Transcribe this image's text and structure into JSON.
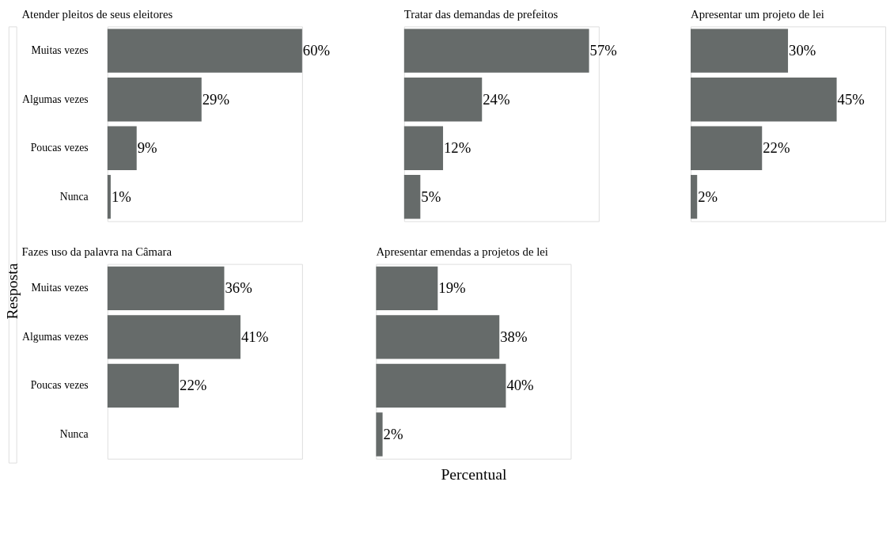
{
  "chart_data": [
    {
      "type": "bar",
      "orientation": "horizontal",
      "title": "Atender pleitos de seus eleitores",
      "ylabel": "Resposta",
      "categories": [
        "Muitas vezes",
        "Algumas vezes",
        "Poucas vezes",
        "Nunca"
      ],
      "values": [
        60,
        29,
        9,
        1
      ],
      "value_labels": [
        "60%",
        "29%",
        "9%",
        "1%"
      ],
      "color": "#666b6a",
      "tick_labels": "y",
      "grid": false
    },
    {
      "type": "bar",
      "orientation": "horizontal",
      "title": "Tratar das demandas de prefeitos",
      "categories": [
        null,
        null,
        null,
        null
      ],
      "values": [
        57,
        24,
        12,
        5
      ],
      "value_labels": [
        "57%",
        "24%",
        "12%",
        "5%"
      ],
      "color": "#666b6a",
      "tick_labels": false,
      "grid": false
    },
    {
      "type": "bar",
      "orientation": "horizontal",
      "title": "Apresentar um projeto de lei",
      "categories": [
        null,
        null,
        null,
        null
      ],
      "values": [
        30,
        45,
        22,
        2
      ],
      "value_labels": [
        "30%",
        "45%",
        "22%",
        "2%"
      ],
      "color": "#666b6a",
      "tick_labels": false,
      "grid": false
    },
    {
      "type": "bar",
      "orientation": "horizontal",
      "title": "Fazes uso da palavra na Câmara",
      "categories": [
        "Muitas vezes",
        "Algumas vezes",
        "Poucas vezes",
        "Nunca"
      ],
      "values": [
        36,
        41,
        22,
        null
      ],
      "value_labels": [
        "36%",
        "41%",
        "22%",
        null
      ],
      "color": "#666b6a",
      "tick_labels": "y",
      "grid": false
    },
    {
      "type": "bar",
      "orientation": "horizontal",
      "title": "Apresentar emendas a projetos de lei",
      "xlabel": "Percentual",
      "categories": [
        null,
        null,
        null,
        null
      ],
      "values": [
        19,
        38,
        40,
        2
      ],
      "value_labels": [
        "19%",
        "38%",
        "40%",
        "2%"
      ],
      "color": "#666b6a",
      "tick_labels": false,
      "grid": false
    }
  ]
}
